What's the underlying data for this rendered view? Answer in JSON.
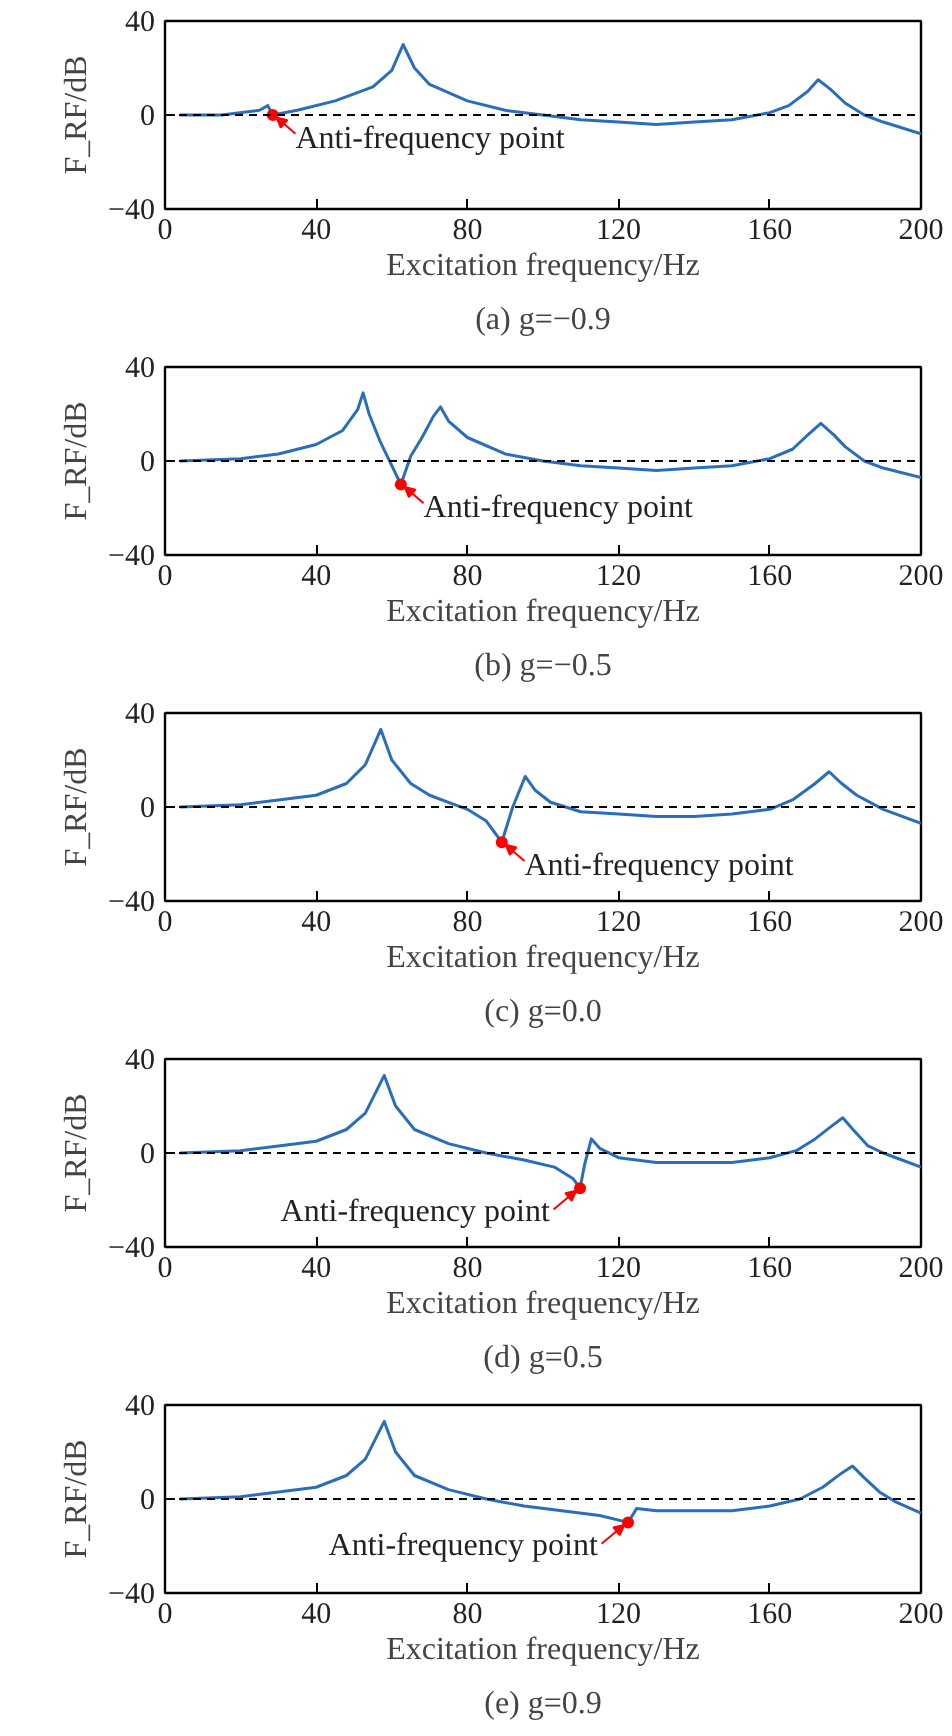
{
  "chart_data": [
    {
      "type": "line",
      "title": "(a) g=−0.9",
      "xlabel": "Excitation frequency/Hz",
      "ylabel": "F_RF/dB",
      "xlim": [
        0,
        200
      ],
      "ylim": [
        -40,
        40
      ],
      "xticks": [
        0,
        40,
        80,
        120,
        160,
        200
      ],
      "yticks": [
        -40,
        0,
        40
      ],
      "grid": false,
      "ref_lines": [
        {
          "axis": "y",
          "value": 0,
          "color": "#000000",
          "line_style": "dashed"
        }
      ],
      "annotations": [
        {
          "text": "Anti-frequency point",
          "x": 28.5,
          "y": 0
        }
      ],
      "series": [
        {
          "color": "#2a6ebb",
          "x": [
            4,
            15,
            25,
            27.2,
            28.5,
            35,
            45,
            55,
            60,
            63,
            66,
            70,
            80,
            90,
            100,
            110,
            120,
            130,
            140,
            150,
            160,
            165,
            170,
            172.8,
            176,
            180,
            185,
            190,
            200
          ],
          "values": [
            0,
            0,
            2,
            4,
            0,
            2,
            6,
            12,
            19,
            30,
            20,
            13,
            6,
            2,
            0,
            -2,
            -3,
            -4,
            -3,
            -2,
            1,
            4,
            10,
            15,
            11,
            5,
            0,
            -3,
            -8
          ]
        },
        {
          "type": "scatter",
          "color": "#ff0000",
          "marker": "circle",
          "x": [
            28.5
          ],
          "values": [
            0
          ]
        }
      ]
    },
    {
      "type": "line",
      "title": "(b) g=−0.5",
      "xlabel": "Excitation frequency/Hz",
      "ylabel": "F_RF/dB",
      "xlim": [
        0,
        200
      ],
      "ylim": [
        -40,
        40
      ],
      "xticks": [
        0,
        40,
        80,
        120,
        160,
        200
      ],
      "yticks": [
        -40,
        0,
        40
      ],
      "grid": false,
      "ref_lines": [
        {
          "axis": "y",
          "value": 0,
          "color": "#000000",
          "line_style": "dashed"
        }
      ],
      "annotations": [
        {
          "text": "Anti-frequency point",
          "x": 62.4,
          "y": -10
        }
      ],
      "series": [
        {
          "color": "#2a6ebb",
          "x": [
            4,
            20,
            30,
            40,
            47,
            51,
            52.4,
            54,
            57,
            60,
            62.4,
            65,
            68,
            71,
            72.9,
            75,
            80,
            90,
            100,
            110,
            120,
            130,
            140,
            150,
            160,
            166,
            170,
            173.5,
            177,
            180,
            185,
            190,
            200
          ],
          "values": [
            0,
            1,
            3,
            7,
            13,
            22,
            29,
            20,
            8,
            -2,
            -10,
            2,
            10,
            19,
            23,
            17,
            10,
            3,
            0,
            -2,
            -3,
            -4,
            -3,
            -2,
            1,
            5,
            11,
            16,
            11,
            6,
            0,
            -3,
            -7
          ]
        },
        {
          "type": "scatter",
          "color": "#ff0000",
          "marker": "circle",
          "x": [
            62.4
          ],
          "values": [
            -10
          ]
        }
      ]
    },
    {
      "type": "line",
      "title": "(c) g=0.0",
      "xlabel": "Excitation frequency/Hz",
      "ylabel": "F_RF/dB",
      "xlim": [
        0,
        200
      ],
      "ylim": [
        -40,
        40
      ],
      "xticks": [
        0,
        40,
        80,
        120,
        160,
        200
      ],
      "yticks": [
        -40,
        0,
        40
      ],
      "grid": false,
      "ref_lines": [
        {
          "axis": "y",
          "value": 0,
          "color": "#000000",
          "line_style": "dashed"
        }
      ],
      "annotations": [
        {
          "text": "Anti-frequency point",
          "x": 89.1,
          "y": -15
        }
      ],
      "series": [
        {
          "color": "#2a6ebb",
          "x": [
            4,
            20,
            30,
            40,
            48,
            53,
            57.1,
            60,
            65,
            70,
            75,
            80,
            85,
            89.1,
            92,
            95.3,
            98,
            102,
            110,
            120,
            130,
            140,
            150,
            160,
            166,
            172,
            175.7,
            179,
            183,
            190,
            200
          ],
          "values": [
            0,
            1,
            3,
            5,
            10,
            18,
            33,
            20,
            10,
            5,
            2,
            -1,
            -6,
            -15,
            0,
            13,
            7,
            2,
            -2,
            -3,
            -4,
            -4,
            -3,
            -1,
            3,
            10,
            15,
            10,
            5,
            -1,
            -7
          ]
        },
        {
          "type": "scatter",
          "color": "#ff0000",
          "marker": "circle",
          "x": [
            89.1
          ],
          "values": [
            -15
          ]
        }
      ]
    },
    {
      "type": "line",
      "title": "(d) g=0.5",
      "xlabel": "Excitation frequency/Hz",
      "ylabel": "F_RF/dB",
      "xlim": [
        0,
        200
      ],
      "ylim": [
        -40,
        40
      ],
      "xticks": [
        0,
        40,
        80,
        120,
        160,
        200
      ],
      "yticks": [
        -40,
        0,
        40
      ],
      "grid": false,
      "ref_lines": [
        {
          "axis": "y",
          "value": 0,
          "color": "#000000",
          "line_style": "dashed"
        }
      ],
      "annotations": [
        {
          "text": "Anti-frequency point",
          "x": 109.8,
          "y": -15
        }
      ],
      "series": [
        {
          "color": "#2a6ebb",
          "x": [
            4,
            20,
            30,
            40,
            48,
            53,
            58,
            61,
            66,
            75,
            85,
            95,
            103,
            108,
            109.8,
            111,
            112.8,
            115,
            120,
            130,
            140,
            150,
            160,
            167,
            172,
            176,
            179.3,
            182,
            186,
            190,
            200
          ],
          "values": [
            0,
            1,
            3,
            5,
            10,
            17,
            33,
            20,
            10,
            4,
            0,
            -3,
            -6,
            -11,
            -15,
            -5,
            6,
            2,
            -2,
            -4,
            -4,
            -4,
            -2,
            1,
            6,
            11,
            15,
            10,
            3,
            0,
            -6
          ]
        },
        {
          "type": "scatter",
          "color": "#ff0000",
          "marker": "circle",
          "x": [
            109.8
          ],
          "values": [
            -15
          ]
        }
      ]
    },
    {
      "type": "line",
      "title": "(e) g=0.9",
      "xlabel": "Excitation frequency/Hz",
      "ylabel": "F_RF/dB",
      "xlim": [
        0,
        200
      ],
      "ylim": [
        -40,
        40
      ],
      "xticks": [
        0,
        40,
        80,
        120,
        160,
        200
      ],
      "yticks": [
        -40,
        0,
        40
      ],
      "grid": false,
      "ref_lines": [
        {
          "axis": "y",
          "value": 0,
          "color": "#000000",
          "line_style": "dashed"
        }
      ],
      "annotations": [
        {
          "text": "Anti-frequency point",
          "x": 122.5,
          "y": -10
        }
      ],
      "series": [
        {
          "color": "#2a6ebb",
          "x": [
            4,
            20,
            30,
            40,
            48,
            53,
            58,
            61,
            66,
            75,
            85,
            95,
            105,
            115,
            120,
            122.5,
            124.8,
            130,
            140,
            150,
            160,
            168,
            174,
            179,
            181.9,
            185,
            189,
            193,
            200
          ],
          "values": [
            0,
            1,
            3,
            5,
            10,
            17,
            33,
            20,
            10,
            4,
            0,
            -3,
            -5,
            -7,
            -9,
            -10,
            -4,
            -5,
            -5,
            -5,
            -3,
            0,
            5,
            11,
            14,
            9,
            3,
            -1,
            -6
          ]
        },
        {
          "type": "scatter",
          "color": "#ff0000",
          "marker": "circle",
          "x": [
            122.5
          ],
          "values": [
            -10
          ]
        }
      ]
    }
  ]
}
